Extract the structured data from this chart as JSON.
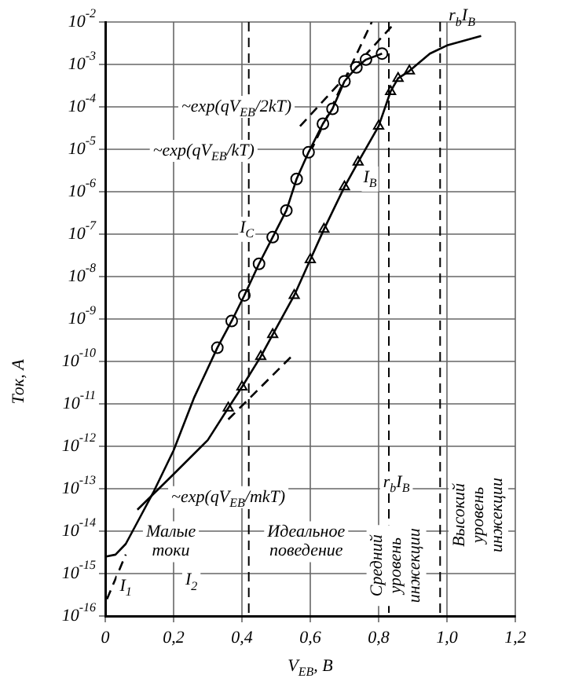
{
  "chart_data": {
    "type": "line",
    "xlabel": "V$_{EB}$, В",
    "ylabel": "Ток, А",
    "log": "y",
    "grid": true,
    "legend": false,
    "xlim": [
      0,
      1.2
    ],
    "xticks": [
      0,
      {
        "value": 0.2,
        "label": "0,2"
      },
      {
        "value": 0.4,
        "label": "0,4"
      },
      {
        "value": 0.6,
        "label": "0,6"
      },
      {
        "value": 0.8,
        "label": "0,8"
      },
      {
        "value": 1.0,
        "label": "1,0"
      },
      {
        "value": 1.2,
        "label": "1,2"
      }
    ],
    "ylim": [
      1e-16,
      0.01
    ],
    "yticks": [
      {
        "value": 1e-16,
        "label": "10$^{-16}$"
      },
      {
        "value": 1e-15,
        "label": "10$^{-15}$"
      },
      {
        "value": 1e-14,
        "label": "10$^{-14}$"
      },
      {
        "value": 1e-13,
        "label": "10$^{-13}$"
      },
      {
        "value": 1e-12,
        "label": "10$^{-12}$"
      },
      {
        "value": 1e-11,
        "label": "10$^{-11}$"
      },
      {
        "value": 1e-10,
        "label": "10$^{-10}$"
      },
      {
        "value": 1e-09,
        "label": "10$^{-9}$"
      },
      {
        "value": 1e-08,
        "label": "10$^{-8}$"
      },
      {
        "value": 1e-07,
        "label": "10$^{-7}$"
      },
      {
        "value": 1e-06,
        "label": "10$^{-6}$"
      },
      {
        "value": 1e-05,
        "label": "10$^{-5}$"
      },
      {
        "value": 0.0001,
        "label": "10$^{-4}$"
      },
      {
        "value": 0.001,
        "label": "10$^{-3}$"
      },
      {
        "value": 0.01,
        "label": "10$^{-2}$"
      }
    ],
    "series": [
      {
        "name": "I$_{C}$",
        "color": "#000000",
        "marker": "none",
        "x": [
          0,
          0.03,
          0.06,
          0.1,
          0.14,
          0.2,
          0.26,
          0.328,
          0.37,
          0.407,
          0.45,
          0.49,
          0.53,
          0.56,
          0.595,
          0.637,
          0.665,
          0.7,
          0.735,
          0.763,
          0.81
        ],
        "values": [
          2.5e-15,
          2.8e-15,
          5e-15,
          2e-14,
          8e-14,
          8e-13,
          1.4e-11,
          2.1e-10,
          9e-10,
          3.6e-09,
          2e-08,
          8.5e-08,
          3.6e-07,
          2e-06,
          8.5e-06,
          4e-05,
          9e-05,
          0.0004,
          0.00085,
          0.0013,
          0.0018
        ]
      },
      {
        "name": "I$_{B}$",
        "color": "#000000",
        "marker": "none",
        "x": [
          0.094,
          0.2,
          0.3,
          0.36,
          0.4,
          0.455,
          0.49,
          0.553,
          0.6,
          0.64,
          0.7,
          0.74,
          0.8,
          0.835,
          0.857,
          0.89,
          0.95,
          1.0,
          1.1
        ],
        "values": [
          3.2e-14,
          2.2e-13,
          1.4e-12,
          8e-12,
          2.5e-11,
          1.3e-10,
          4.3e-10,
          3.6e-09,
          2.5e-08,
          1.3e-07,
          1.3e-06,
          5e-06,
          3.5e-05,
          0.00023,
          0.00047,
          0.0007,
          0.0018,
          0.0028,
          0.0047
        ]
      },
      {
        "type": "scatter",
        "color": "#000000",
        "marker": "circle",
        "x": [
          0.328,
          0.37,
          0.407,
          0.45,
          0.49,
          0.53,
          0.56,
          0.595,
          0.637,
          0.665,
          0.7,
          0.735,
          0.763,
          0.81
        ],
        "values": [
          2.1e-10,
          9e-10,
          3.6e-09,
          2e-08,
          8.5e-08,
          3.6e-07,
          2e-06,
          8.5e-06,
          4e-05,
          9e-05,
          0.0004,
          0.00085,
          0.0013,
          0.0018
        ]
      },
      {
        "type": "scatter",
        "color": "#000000",
        "marker": "triangle",
        "x": [
          0.36,
          0.4,
          0.455,
          0.49,
          0.553,
          0.6,
          0.64,
          0.7,
          0.74,
          0.8,
          0.835,
          0.857,
          0.89
        ],
        "values": [
          8e-12,
          2.5e-11,
          1.3e-10,
          4.3e-10,
          3.6e-09,
          2.5e-08,
          1.3e-07,
          1.3e-06,
          5e-06,
          3.5e-05,
          0.00023,
          0.00047,
          0.0007
        ]
      },
      {
        "color": "#000000",
        "marker": "none",
        "line_style": "dashed",
        "x": [
          0.6,
          0.78
        ],
        "values": [
          8.5e-06,
          0.01
        ]
      },
      {
        "color": "#000000",
        "marker": "none",
        "line_style": "dashed",
        "x": [
          0.57,
          0.85
        ],
        "values": [
          3.5e-05,
          0.01
        ]
      },
      {
        "color": "#000000",
        "marker": "none",
        "line_style": "dashed",
        "x": [
          0.36,
          0.543
        ],
        "values": [
          4.3e-12,
          1.26e-10
        ]
      },
      {
        "color": "#000000",
        "marker": "none",
        "line_style": "dashed",
        "x": [
          0.005,
          0.06
        ],
        "values": [
          2.5e-16,
          2.8e-15
        ]
      }
    ],
    "ref_lines": [
      {
        "axis": "x",
        "value": 0.42,
        "line_style": "dashed"
      },
      {
        "axis": "x",
        "value": 0.83,
        "line_style": "dashed"
      },
      {
        "axis": "x",
        "value": 0.98,
        "line_style": "dashed"
      }
    ],
    "annotations": [
      "~exp(qV$_{EB}$/2kT)",
      "~exp(qV$_{EB}$/kT)",
      "~exp(qV$_{EB}$/mkT)",
      "r$_{b}$I$_{B}$",
      "r$_{b}$I$_{B}$",
      "I$_{1}$",
      "I$_{2}$",
      "Малые\nтоки",
      "Идеальное\nповедение",
      "Средний\nуровень\nинжекции",
      "Высокий\nуровень\nинжекции"
    ]
  }
}
